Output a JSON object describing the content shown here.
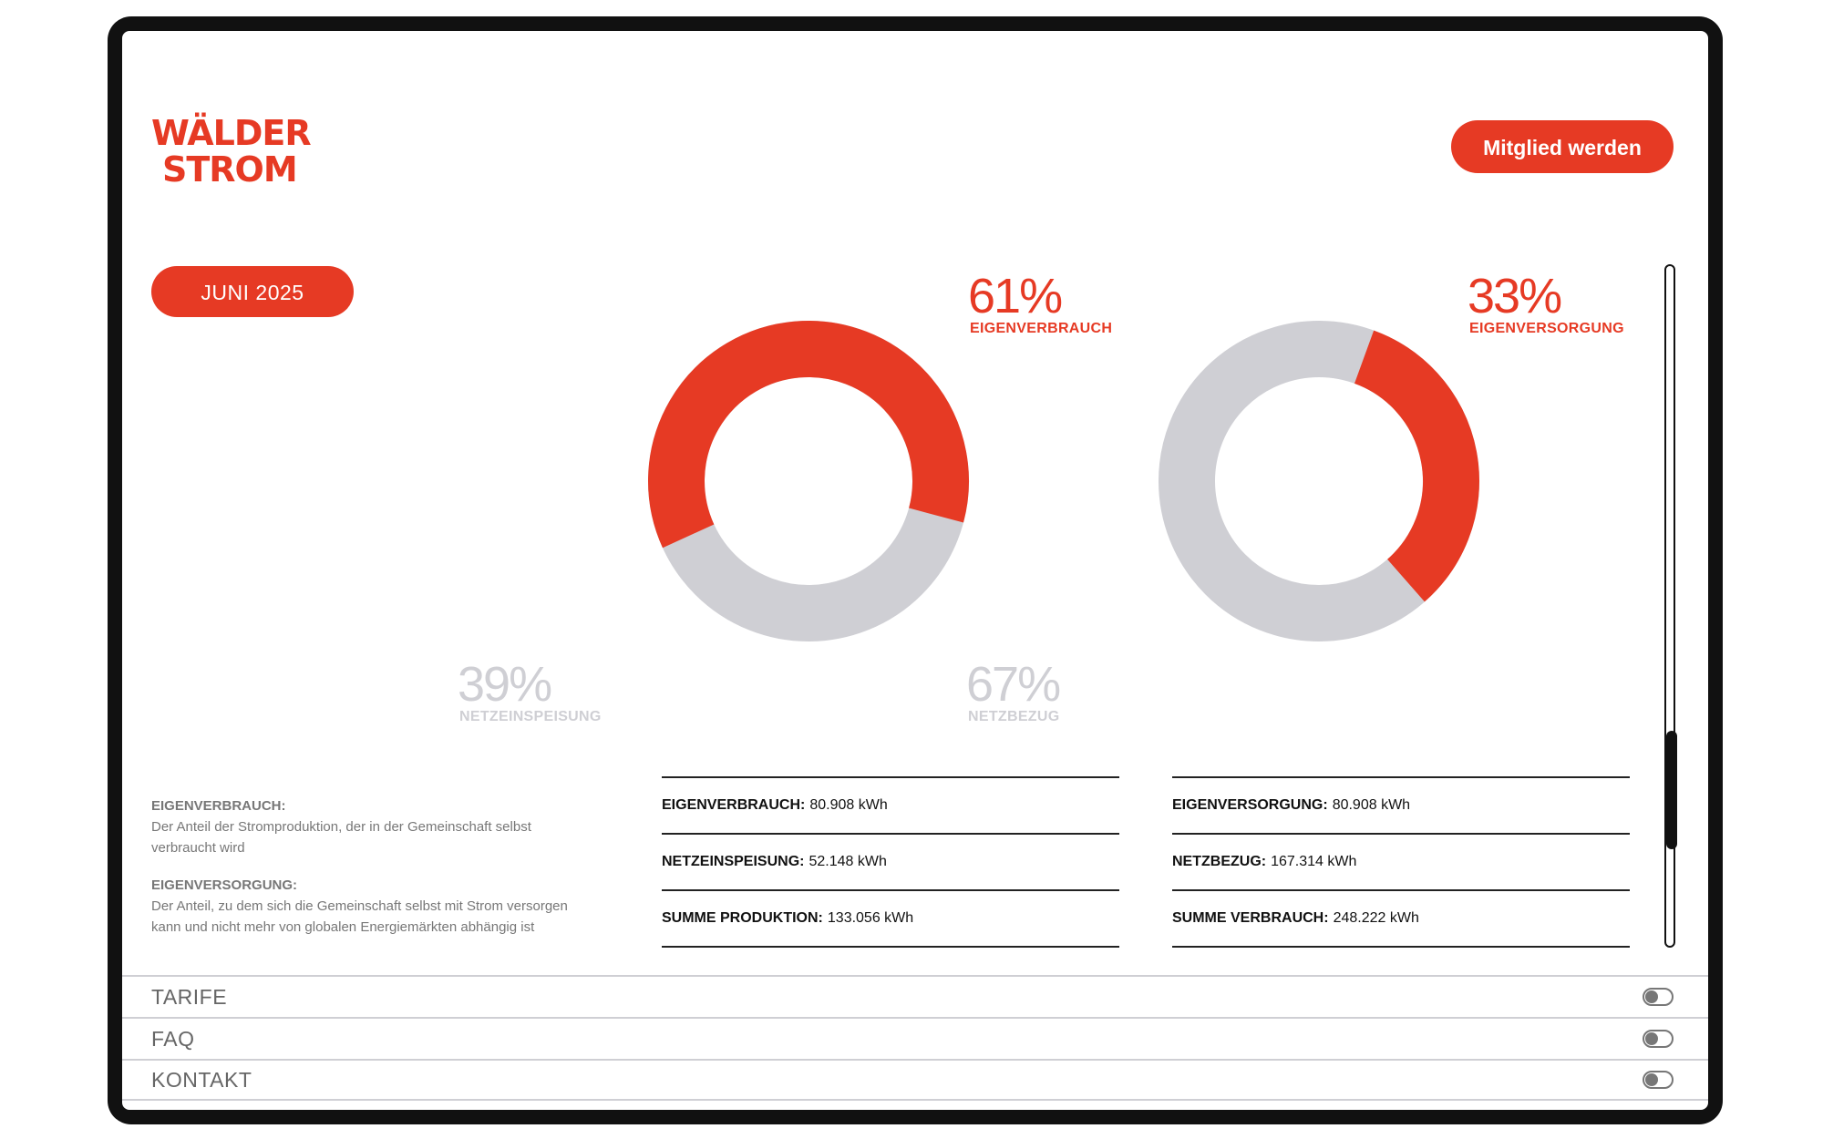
{
  "brand": {
    "logo_line1": "WÄLDER",
    "logo_line2": "STROM"
  },
  "header": {
    "join_button": "Mitglied werden"
  },
  "period": {
    "month_button": "JUNI 2025"
  },
  "colors": {
    "accent": "#e63a24",
    "neutral": "#cfcfd4"
  },
  "charts": {
    "production": {
      "highlight_pct": "61%",
      "highlight_label": "EIGENVERBRAUCH",
      "rest_pct": "39%",
      "rest_label": "NETZEINSPEISUNG",
      "highlight_fraction": 0.61,
      "highlight_position": "clockwise-from-left",
      "stats": [
        {
          "label": "EIGENVERBRAUCH:",
          "value": "80.908 kWh"
        },
        {
          "label": "NETZEINSPEISUNG:",
          "value": "52.148 kWh"
        },
        {
          "label": "SUMME PRODUKTION:",
          "value": "133.056 kWh"
        }
      ]
    },
    "consumption": {
      "highlight_pct": "33%",
      "highlight_label": "EIGENVERSORGUNG",
      "rest_pct": "67%",
      "rest_label": "NETZBEZUG",
      "highlight_fraction": 0.33,
      "highlight_position": "clockwise-from-top-right",
      "stats": [
        {
          "label": "EIGENVERSORGUNG:",
          "value": "80.908 kWh"
        },
        {
          "label": "NETZBEZUG:",
          "value": "167.314 kWh"
        },
        {
          "label": "SUMME VERBRAUCH:",
          "value": "248.222 kWh"
        }
      ]
    }
  },
  "definitions": [
    {
      "term": "EIGENVERBRAUCH:",
      "text": "Der Anteil der Stromproduktion, der in der Gemeinschaft selbst verbraucht wird"
    },
    {
      "term": "EIGENVERSORGUNG:",
      "text": "Der Anteil, zu dem sich die Gemeinschaft selbst mit Strom versorgen kann und nicht mehr von globalen Energiemärkten abhängig ist"
    }
  ],
  "accordion": [
    {
      "label": "TARIFE",
      "toggle": "off"
    },
    {
      "label": "FAQ",
      "toggle": "off"
    },
    {
      "label": "KONTAKT",
      "toggle": "off"
    }
  ]
}
